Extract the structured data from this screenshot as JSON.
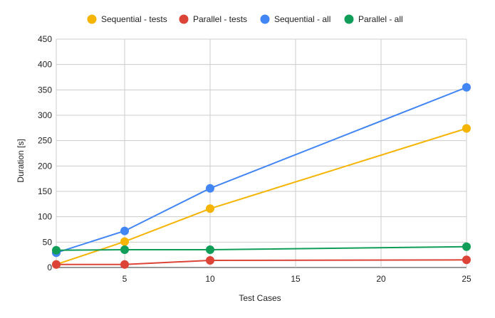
{
  "chart_data": {
    "type": "line",
    "title": "",
    "xlabel": "Test Cases",
    "ylabel": "Duration [s]",
    "xlim": [
      1,
      25
    ],
    "ylim": [
      0,
      450
    ],
    "x_ticks": [
      5,
      10,
      15,
      20,
      25
    ],
    "y_ticks": [
      0,
      50,
      100,
      150,
      200,
      250,
      300,
      350,
      400,
      450
    ],
    "grid": true,
    "legend_position": "top",
    "x": [
      1,
      5,
      10,
      25
    ],
    "series": [
      {
        "name": "Sequential - tests",
        "color": "#F4B400",
        "values": [
          6,
          51,
          116,
          274
        ]
      },
      {
        "name": "Parallel - tests",
        "color": "#DB4437",
        "values": [
          6,
          6,
          14,
          15
        ]
      },
      {
        "name": "Sequential - all",
        "color": "#4285F4",
        "values": [
          29,
          72,
          156,
          355
        ]
      },
      {
        "name": "Parallel - all",
        "color": "#0F9D58",
        "values": [
          34,
          35,
          35,
          41
        ]
      }
    ]
  }
}
